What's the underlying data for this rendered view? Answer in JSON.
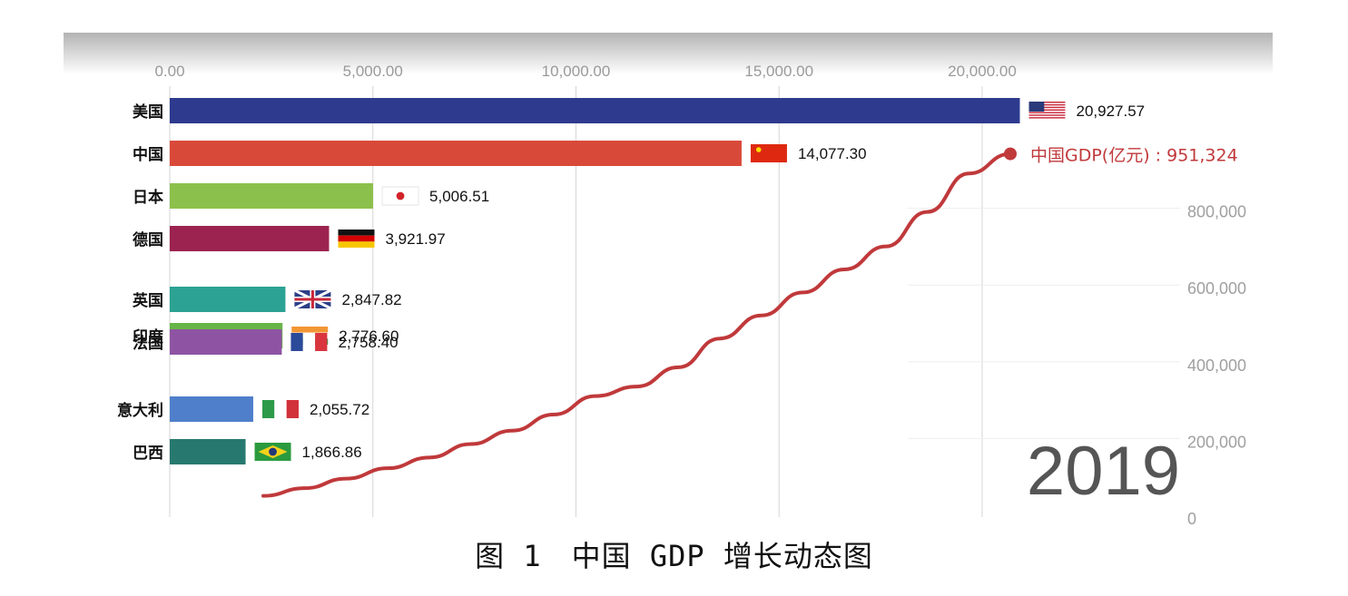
{
  "chart_data": {
    "type": "bar",
    "orientation": "horizontal",
    "categories": [
      "美国",
      "中国",
      "日本",
      "德国",
      "英国",
      "印度",
      "法国",
      "意大利",
      "巴西"
    ],
    "values": [
      20927.57,
      14077.3,
      5006.51,
      3921.97,
      2847.82,
      2776.6,
      2758.4,
      2055.72,
      1866.86
    ],
    "value_labels": [
      "20,927.57",
      "14,077.30",
      "5,006.51",
      "3,921.97",
      "2,847.82",
      "2,776.60",
      "2,758.40",
      "2,055.72",
      "1,866.86"
    ],
    "bar_colors": [
      "#2e3a8e",
      "#d9493a",
      "#8cc04c",
      "#9c2350",
      "#2ba293",
      "#68b547",
      "#8e54a3",
      "#4f7fcb",
      "#27796f"
    ],
    "flags": [
      "us-flag-icon",
      "china-flag-icon",
      "japan-flag-icon",
      "germany-flag-icon",
      "uk-flag-icon",
      "india-flag-icon",
      "france-flag-icon",
      "italy-flag-icon",
      "brazil-flag-icon"
    ],
    "x_ticks": [
      "0.00",
      "5,000.00",
      "10,000.00",
      "15,000.00",
      "20,000.00"
    ],
    "xlim": [
      0,
      25000
    ],
    "year": "2019",
    "overlay_line": {
      "type": "line",
      "name": "中国GDP(亿元) : 951,324",
      "color": "#c0393b",
      "end_value": 951324,
      "ylim": [
        0,
        1000000
      ],
      "y_ticks": [
        "0",
        "200,000",
        "400,000",
        "600,000",
        "800,000"
      ],
      "values": [
        60000,
        80000,
        105000,
        132000,
        160000,
        195000,
        230000,
        272000,
        320000,
        345000,
        395000,
        470000,
        530000,
        590000,
        650000,
        710000,
        800000,
        900000,
        951324
      ]
    }
  },
  "caption": "图 1　中国 GDP 增长动态图"
}
